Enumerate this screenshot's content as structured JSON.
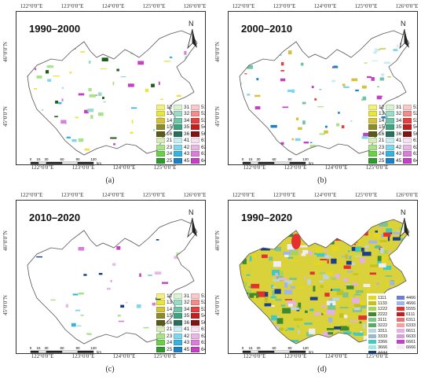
{
  "panels": [
    {
      "id": "a",
      "title": "1990–2000",
      "caption": "(a)"
    },
    {
      "id": "b",
      "title": "2000–2010",
      "caption": "(b)"
    },
    {
      "id": "c",
      "title": "2010–2020",
      "caption": "(c)"
    },
    {
      "id": "d",
      "title": "1990–2020",
      "caption": "(d)"
    }
  ],
  "axes": {
    "top_ticks": [
      "122°0'0\"E",
      "123°0'0\"E",
      "124°0'0\"E",
      "125°0'0\"E",
      "126°0'0\"E"
    ],
    "bottom_ticks": [
      "122°0'0\"E",
      "123°0'0\"E",
      "124°0'0\"E",
      "125°0'0\"E"
    ],
    "left_ticks": [
      "46°0'0\"N",
      "45°0'0\"N"
    ],
    "right_ticks": [
      "46°0'0\"N",
      "45°0'0\"N",
      "44°0'0\"N"
    ]
  },
  "north_label": "N",
  "scale_bar": {
    "labels": [
      "0",
      "15",
      "30",
      "60",
      "90",
      "120"
    ],
    "unit": "km"
  },
  "legend_change": [
    [
      {
        "code": "12",
        "color": "#f3f081"
      },
      {
        "code": "31",
        "color": "#d9f2d0"
      },
      {
        "code": "51",
        "color": "#f9c8c8"
      }
    ],
    [
      {
        "code": "13",
        "color": "#e8e63a"
      },
      {
        "code": "32",
        "color": "#9adbc8"
      },
      {
        "code": "52",
        "color": "#f28b8b"
      }
    ],
    [
      {
        "code": "14",
        "color": "#d4c23a"
      },
      {
        "code": "34",
        "color": "#6fc4a8"
      },
      {
        "code": "53",
        "color": "#e54040"
      }
    ],
    [
      {
        "code": "15",
        "color": "#8c8c2a"
      },
      {
        "code": "35",
        "color": "#3aa57f"
      },
      {
        "code": "54",
        "color": "#c41f1f"
      }
    ],
    [
      {
        "code": "16",
        "color": "#5a5a1a"
      },
      {
        "code": "36",
        "color": "#2a6f5a"
      },
      {
        "code": "56",
        "color": "#7f1414"
      }
    ],
    [
      {
        "code": "21",
        "color": "#d8ecbb"
      },
      {
        "code": "41",
        "color": "#c9ecf5"
      },
      {
        "code": "61",
        "color": "#f6e0f3"
      }
    ],
    [
      {
        "code": "23",
        "color": "#a8e38a"
      },
      {
        "code": "42",
        "color": "#7fd6ee"
      },
      {
        "code": "62",
        "color": "#eab6e6"
      }
    ],
    [
      {
        "code": "24",
        "color": "#6ccf48"
      },
      {
        "code": "43",
        "color": "#35b4e0"
      },
      {
        "code": "63",
        "color": "#d880d8"
      }
    ],
    [
      {
        "code": "25",
        "color": "#2f9a2f"
      },
      {
        "code": "45",
        "color": "#1d7fc4"
      },
      {
        "code": "64",
        "color": "#c440c4"
      }
    ],
    [
      {
        "code": "26",
        "color": "#1d5e1d"
      },
      {
        "code": "46",
        "color": "#123f8f"
      },
      {
        "code": "65",
        "color": "#8a1f8a"
      }
    ]
  ],
  "legend_trajectory": [
    [
      {
        "code": "1111",
        "color": "#e3d81f"
      },
      {
        "code": "4466",
        "color": "#6a7fd4"
      }
    ],
    [
      {
        "code": "1133",
        "color": "#c4c11a"
      },
      {
        "code": "4666",
        "color": "#a0b4ee"
      }
    ],
    [
      {
        "code": "1222",
        "color": "#a4d45a"
      },
      {
        "code": "5555",
        "color": "#e53030"
      }
    ],
    [
      {
        "code": "2222",
        "color": "#3d8a2f"
      },
      {
        "code": "6111",
        "color": "#c41f1f"
      }
    ],
    [
      {
        "code": "3111",
        "color": "#7fc48a"
      },
      {
        "code": "6311",
        "color": "#e87070"
      }
    ],
    [
      {
        "code": "3222",
        "color": "#5aa86a"
      },
      {
        "code": "6333",
        "color": "#f2a0a0"
      }
    ],
    [
      {
        "code": "3311",
        "color": "#bcd4e6"
      },
      {
        "code": "6611",
        "color": "#e6b0e6"
      }
    ],
    [
      {
        "code": "3333",
        "color": "#9ab8ce"
      },
      {
        "code": "6633",
        "color": "#d4a0d8"
      }
    ],
    [
      {
        "code": "3366",
        "color": "#45c8c0"
      },
      {
        "code": "6661",
        "color": "#c040c8"
      }
    ],
    [
      {
        "code": "3666",
        "color": "#a0e8e0"
      },
      {
        "code": "6666",
        "color": "#f0eef4"
      }
    ],
    [
      {
        "code": "4444",
        "color": "#1a3f8f"
      },
      {
        "code": "",
        "color": ""
      }
    ]
  ]
}
